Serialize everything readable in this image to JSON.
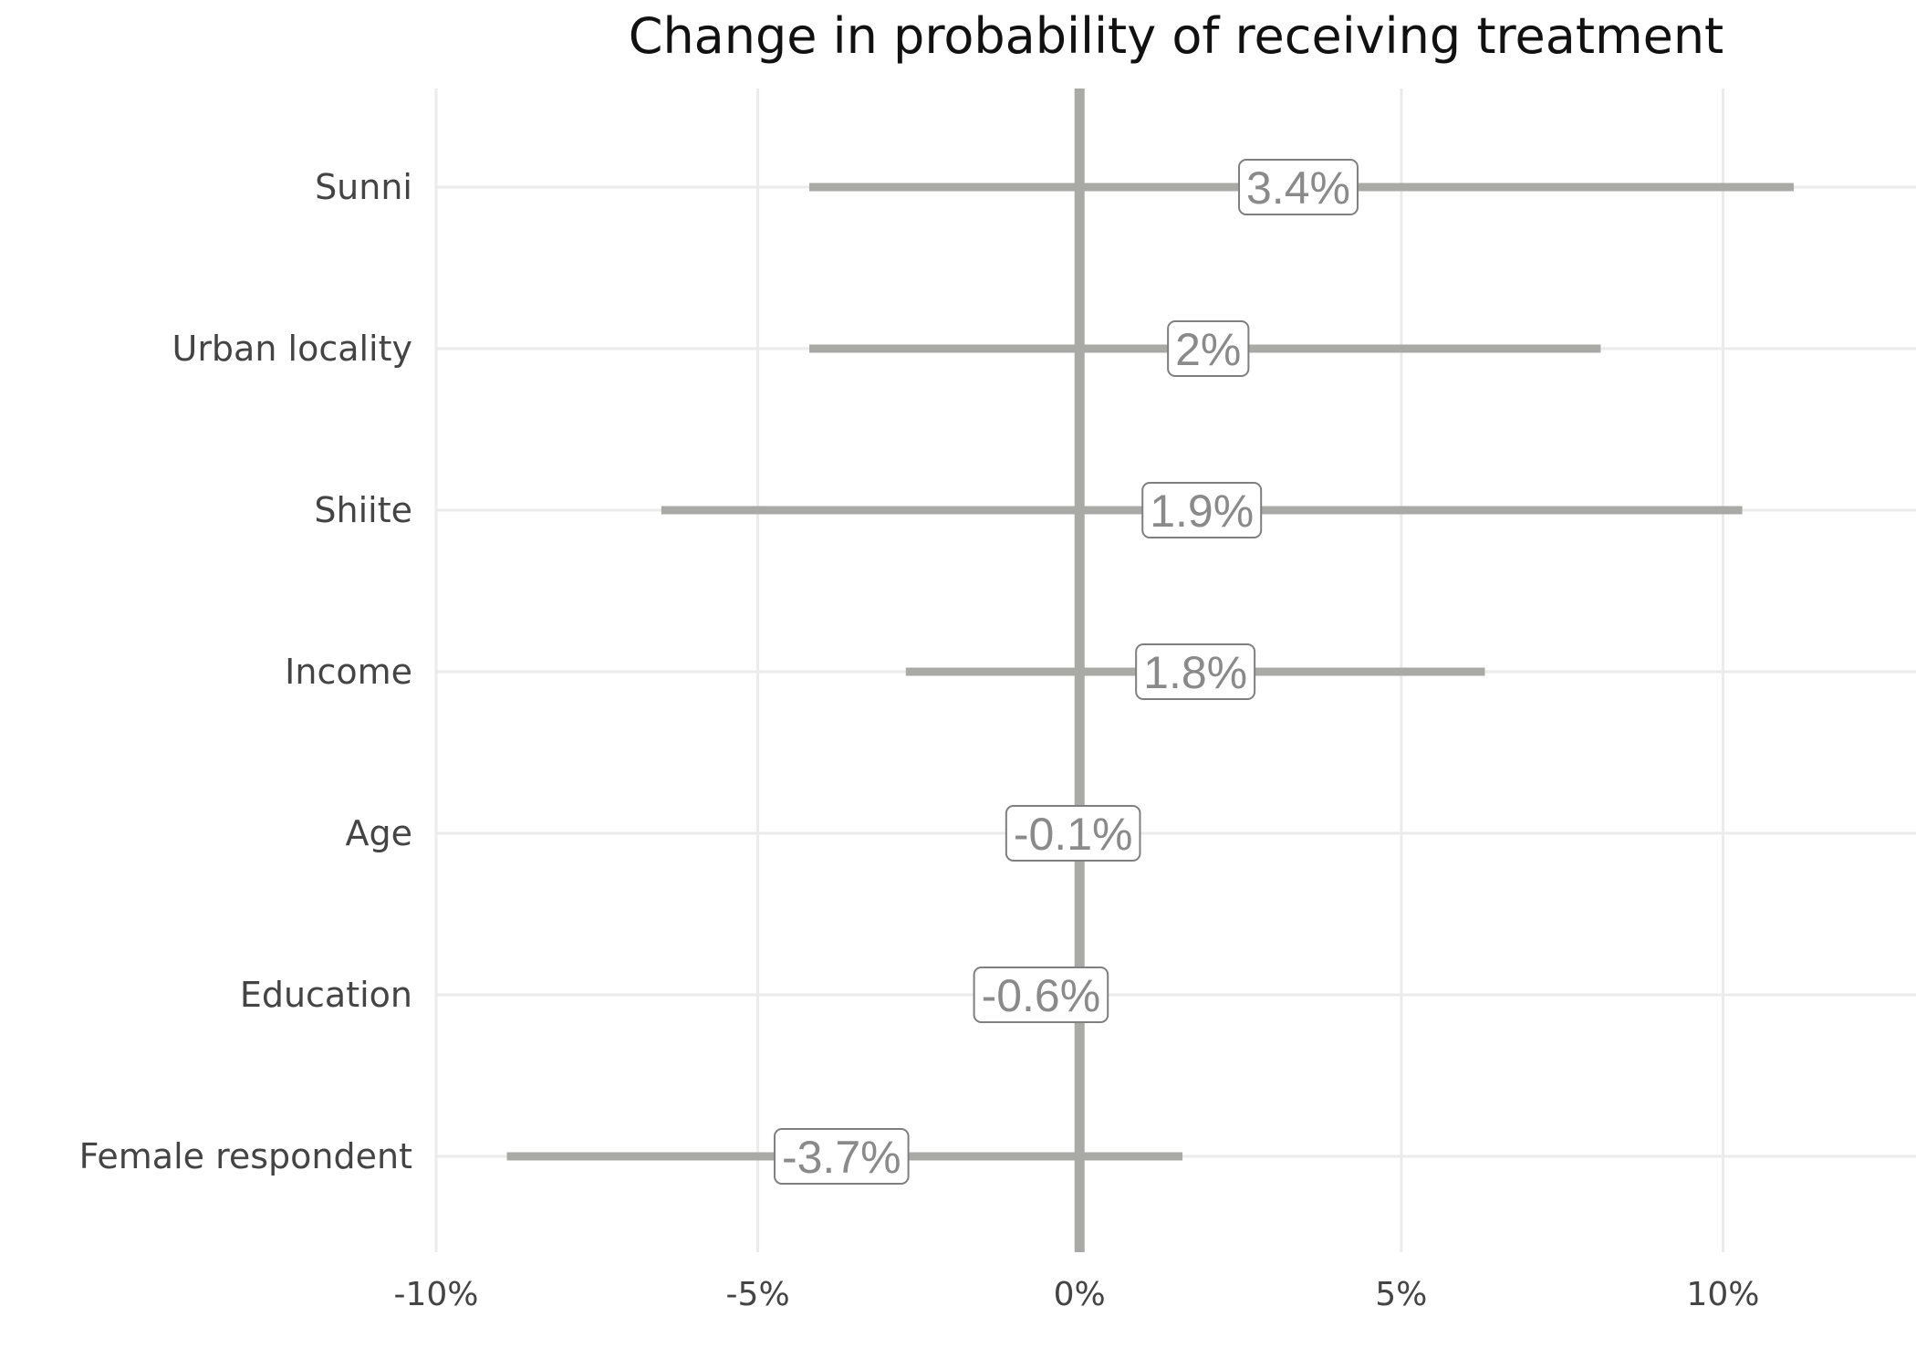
{
  "chart_data": {
    "type": "forest",
    "title": "Change in probability of receiving treatment",
    "xlim": [
      -10,
      13
    ],
    "x_ticks": [
      -10,
      -5,
      0,
      5,
      10
    ],
    "x_tick_labels": [
      "-10%",
      "-5%",
      "0%",
      "5%",
      "10%"
    ],
    "reference_line": 0,
    "line_color": "#a9a9a5",
    "label_text_color": "#8a8a8a",
    "grid": true,
    "rows": [
      {
        "category": "Sunni",
        "estimate": 3.4,
        "lower": -4.2,
        "upper": 11.1,
        "label": "3.4%"
      },
      {
        "category": "Urban locality",
        "estimate": 2.0,
        "lower": -4.2,
        "upper": 8.1,
        "label": "2%"
      },
      {
        "category": "Shiite",
        "estimate": 1.9,
        "lower": -6.5,
        "upper": 10.3,
        "label": "1.9%"
      },
      {
        "category": "Income",
        "estimate": 1.8,
        "lower": -2.7,
        "upper": 6.3,
        "label": "1.8%"
      },
      {
        "category": "Age",
        "estimate": -0.1,
        "lower": -0.1,
        "upper": -0.1,
        "label": "-0.1%"
      },
      {
        "category": "Education",
        "estimate": -0.6,
        "lower": -0.6,
        "upper": -0.6,
        "label": "-0.6%"
      },
      {
        "category": "Female respondent",
        "estimate": -3.7,
        "lower": -8.9,
        "upper": 1.6,
        "label": "-3.7%"
      }
    ]
  }
}
